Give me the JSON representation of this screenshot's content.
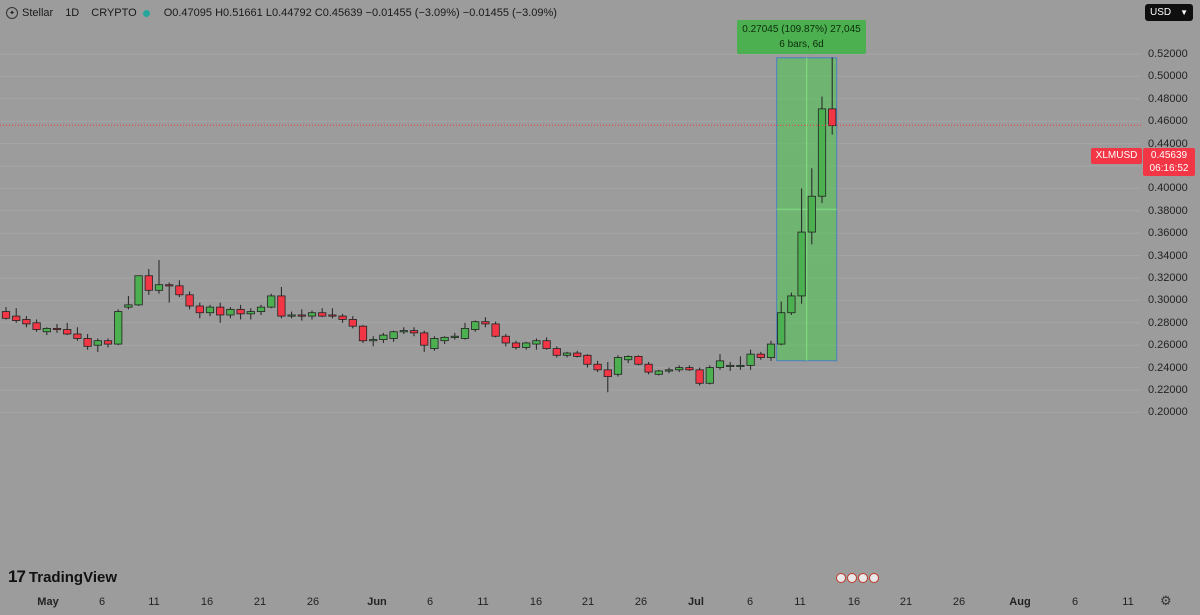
{
  "header": {
    "symbol": "Stellar",
    "interval": "1D",
    "exchange": "CRYPTO",
    "ohlc": "O0.47095 H0.51661 L0.44792 C0.45639 −0.01455 (−3.09%) −0.01455 (−3.09%)"
  },
  "currency": {
    "label": "USD"
  },
  "price_scale": {
    "labels": [
      "0.52000",
      "0.50000",
      "0.48000",
      "0.46000",
      "0.44000",
      "0.42000",
      "0.40000",
      "0.38000",
      "0.36000",
      "0.34000",
      "0.32000",
      "0.30000",
      "0.28000",
      "0.26000",
      "0.24000",
      "0.22000",
      "0.20000"
    ]
  },
  "time_axis": {
    "labels": [
      "May",
      "6",
      "11",
      "16",
      "21",
      "26",
      "Jun",
      "6",
      "11",
      "16",
      "21",
      "26",
      "Jul",
      "6",
      "11",
      "16",
      "21",
      "26",
      "Aug",
      "6",
      "11"
    ]
  },
  "last_price": {
    "symbol": "XLMUSD",
    "value": "0.45639",
    "countdown": "06:16:52",
    "color": "#f23645"
  },
  "measure": {
    "line1": "0.27045 (109.87%) 27,045",
    "line2": "6 bars, 6d"
  },
  "branding": {
    "name": "TradingView"
  },
  "colors": {
    "up": "#4caf50",
    "down": "#f23645",
    "background": "#9c9c9c"
  },
  "chart_data": {
    "type": "candlestick",
    "symbol": "XLMUSD",
    "interval": "1D",
    "y_range": [
      0.19,
      0.53
    ],
    "candles": [
      {
        "o": 0.29,
        "h": 0.294,
        "l": 0.283,
        "c": 0.284
      },
      {
        "o": 0.286,
        "h": 0.293,
        "l": 0.28,
        "c": 0.282
      },
      {
        "o": 0.283,
        "h": 0.286,
        "l": 0.276,
        "c": 0.279
      },
      {
        "o": 0.28,
        "h": 0.283,
        "l": 0.272,
        "c": 0.274
      },
      {
        "o": 0.272,
        "h": 0.276,
        "l": 0.269,
        "c": 0.275
      },
      {
        "o": 0.275,
        "h": 0.279,
        "l": 0.271,
        "c": 0.274
      },
      {
        "o": 0.274,
        "h": 0.28,
        "l": 0.269,
        "c": 0.27
      },
      {
        "o": 0.27,
        "h": 0.276,
        "l": 0.264,
        "c": 0.266
      },
      {
        "o": 0.266,
        "h": 0.27,
        "l": 0.256,
        "c": 0.259
      },
      {
        "o": 0.26,
        "h": 0.266,
        "l": 0.254,
        "c": 0.264
      },
      {
        "o": 0.264,
        "h": 0.266,
        "l": 0.258,
        "c": 0.261
      },
      {
        "o": 0.261,
        "h": 0.292,
        "l": 0.26,
        "c": 0.29
      },
      {
        "o": 0.294,
        "h": 0.304,
        "l": 0.292,
        "c": 0.296
      },
      {
        "o": 0.296,
        "h": 0.322,
        "l": 0.295,
        "c": 0.322
      },
      {
        "o": 0.322,
        "h": 0.328,
        "l": 0.305,
        "c": 0.309
      },
      {
        "o": 0.309,
        "h": 0.336,
        "l": 0.306,
        "c": 0.314
      },
      {
        "o": 0.314,
        "h": 0.316,
        "l": 0.298,
        "c": 0.313
      },
      {
        "o": 0.313,
        "h": 0.318,
        "l": 0.303,
        "c": 0.305
      },
      {
        "o": 0.305,
        "h": 0.308,
        "l": 0.292,
        "c": 0.295
      },
      {
        "o": 0.295,
        "h": 0.298,
        "l": 0.284,
        "c": 0.289
      },
      {
        "o": 0.289,
        "h": 0.296,
        "l": 0.286,
        "c": 0.294
      },
      {
        "o": 0.294,
        "h": 0.298,
        "l": 0.28,
        "c": 0.287
      },
      {
        "o": 0.287,
        "h": 0.294,
        "l": 0.284,
        "c": 0.292
      },
      {
        "o": 0.292,
        "h": 0.296,
        "l": 0.283,
        "c": 0.288
      },
      {
        "o": 0.288,
        "h": 0.293,
        "l": 0.283,
        "c": 0.29
      },
      {
        "o": 0.29,
        "h": 0.296,
        "l": 0.287,
        "c": 0.294
      },
      {
        "o": 0.294,
        "h": 0.306,
        "l": 0.293,
        "c": 0.304
      },
      {
        "o": 0.304,
        "h": 0.312,
        "l": 0.284,
        "c": 0.286
      },
      {
        "o": 0.286,
        "h": 0.29,
        "l": 0.284,
        "c": 0.287
      },
      {
        "o": 0.287,
        "h": 0.292,
        "l": 0.282,
        "c": 0.286
      },
      {
        "o": 0.286,
        "h": 0.291,
        "l": 0.283,
        "c": 0.289
      },
      {
        "o": 0.289,
        "h": 0.293,
        "l": 0.285,
        "c": 0.286
      },
      {
        "o": 0.287,
        "h": 0.293,
        "l": 0.284,
        "c": 0.286
      },
      {
        "o": 0.286,
        "h": 0.288,
        "l": 0.28,
        "c": 0.283
      },
      {
        "o": 0.283,
        "h": 0.286,
        "l": 0.275,
        "c": 0.277
      },
      {
        "o": 0.277,
        "h": 0.278,
        "l": 0.262,
        "c": 0.264
      },
      {
        "o": 0.264,
        "h": 0.268,
        "l": 0.259,
        "c": 0.265
      },
      {
        "o": 0.265,
        "h": 0.271,
        "l": 0.262,
        "c": 0.269
      },
      {
        "o": 0.266,
        "h": 0.273,
        "l": 0.263,
        "c": 0.272
      },
      {
        "o": 0.272,
        "h": 0.276,
        "l": 0.27,
        "c": 0.273
      },
      {
        "o": 0.273,
        "h": 0.276,
        "l": 0.268,
        "c": 0.271
      },
      {
        "o": 0.271,
        "h": 0.273,
        "l": 0.254,
        "c": 0.26
      },
      {
        "o": 0.257,
        "h": 0.268,
        "l": 0.255,
        "c": 0.266
      },
      {
        "o": 0.264,
        "h": 0.268,
        "l": 0.261,
        "c": 0.267
      },
      {
        "o": 0.267,
        "h": 0.271,
        "l": 0.265,
        "c": 0.268
      },
      {
        "o": 0.266,
        "h": 0.28,
        "l": 0.265,
        "c": 0.275
      },
      {
        "o": 0.274,
        "h": 0.282,
        "l": 0.272,
        "c": 0.281
      },
      {
        "o": 0.281,
        "h": 0.285,
        "l": 0.276,
        "c": 0.279
      },
      {
        "o": 0.279,
        "h": 0.281,
        "l": 0.267,
        "c": 0.268
      },
      {
        "o": 0.268,
        "h": 0.27,
        "l": 0.259,
        "c": 0.262
      },
      {
        "o": 0.262,
        "h": 0.264,
        "l": 0.256,
        "c": 0.258
      },
      {
        "o": 0.258,
        "h": 0.263,
        "l": 0.256,
        "c": 0.262
      },
      {
        "o": 0.261,
        "h": 0.266,
        "l": 0.256,
        "c": 0.264
      },
      {
        "o": 0.264,
        "h": 0.267,
        "l": 0.256,
        "c": 0.257
      },
      {
        "o": 0.257,
        "h": 0.259,
        "l": 0.249,
        "c": 0.251
      },
      {
        "o": 0.251,
        "h": 0.254,
        "l": 0.249,
        "c": 0.253
      },
      {
        "o": 0.253,
        "h": 0.255,
        "l": 0.249,
        "c": 0.25
      },
      {
        "o": 0.251,
        "h": 0.252,
        "l": 0.24,
        "c": 0.243
      },
      {
        "o": 0.243,
        "h": 0.246,
        "l": 0.236,
        "c": 0.238
      },
      {
        "o": 0.238,
        "h": 0.245,
        "l": 0.218,
        "c": 0.232
      },
      {
        "o": 0.234,
        "h": 0.251,
        "l": 0.232,
        "c": 0.249
      },
      {
        "o": 0.247,
        "h": 0.251,
        "l": 0.244,
        "c": 0.25
      },
      {
        "o": 0.25,
        "h": 0.251,
        "l": 0.242,
        "c": 0.243
      },
      {
        "o": 0.243,
        "h": 0.245,
        "l": 0.234,
        "c": 0.236
      },
      {
        "o": 0.234,
        "h": 0.238,
        "l": 0.233,
        "c": 0.237
      },
      {
        "o": 0.237,
        "h": 0.24,
        "l": 0.235,
        "c": 0.238
      },
      {
        "o": 0.238,
        "h": 0.242,
        "l": 0.236,
        "c": 0.24
      },
      {
        "o": 0.24,
        "h": 0.242,
        "l": 0.237,
        "c": 0.238
      },
      {
        "o": 0.238,
        "h": 0.24,
        "l": 0.224,
        "c": 0.226
      },
      {
        "o": 0.226,
        "h": 0.242,
        "l": 0.225,
        "c": 0.24
      },
      {
        "o": 0.24,
        "h": 0.252,
        "l": 0.238,
        "c": 0.246
      },
      {
        "o": 0.241,
        "h": 0.245,
        "l": 0.237,
        "c": 0.242
      },
      {
        "o": 0.242,
        "h": 0.25,
        "l": 0.238,
        "c": 0.242
      },
      {
        "o": 0.242,
        "h": 0.256,
        "l": 0.238,
        "c": 0.252
      },
      {
        "o": 0.252,
        "h": 0.254,
        "l": 0.247,
        "c": 0.249
      },
      {
        "o": 0.249,
        "h": 0.264,
        "l": 0.246,
        "c": 0.261
      },
      {
        "o": 0.261,
        "h": 0.299,
        "l": 0.26,
        "c": 0.289
      },
      {
        "o": 0.289,
        "h": 0.307,
        "l": 0.287,
        "c": 0.304
      },
      {
        "o": 0.304,
        "h": 0.4,
        "l": 0.297,
        "c": 0.361
      },
      {
        "o": 0.361,
        "h": 0.418,
        "l": 0.35,
        "c": 0.393
      },
      {
        "o": 0.393,
        "h": 0.482,
        "l": 0.387,
        "c": 0.471
      },
      {
        "o": 0.471,
        "h": 0.517,
        "l": 0.448,
        "c": 0.456
      }
    ]
  }
}
